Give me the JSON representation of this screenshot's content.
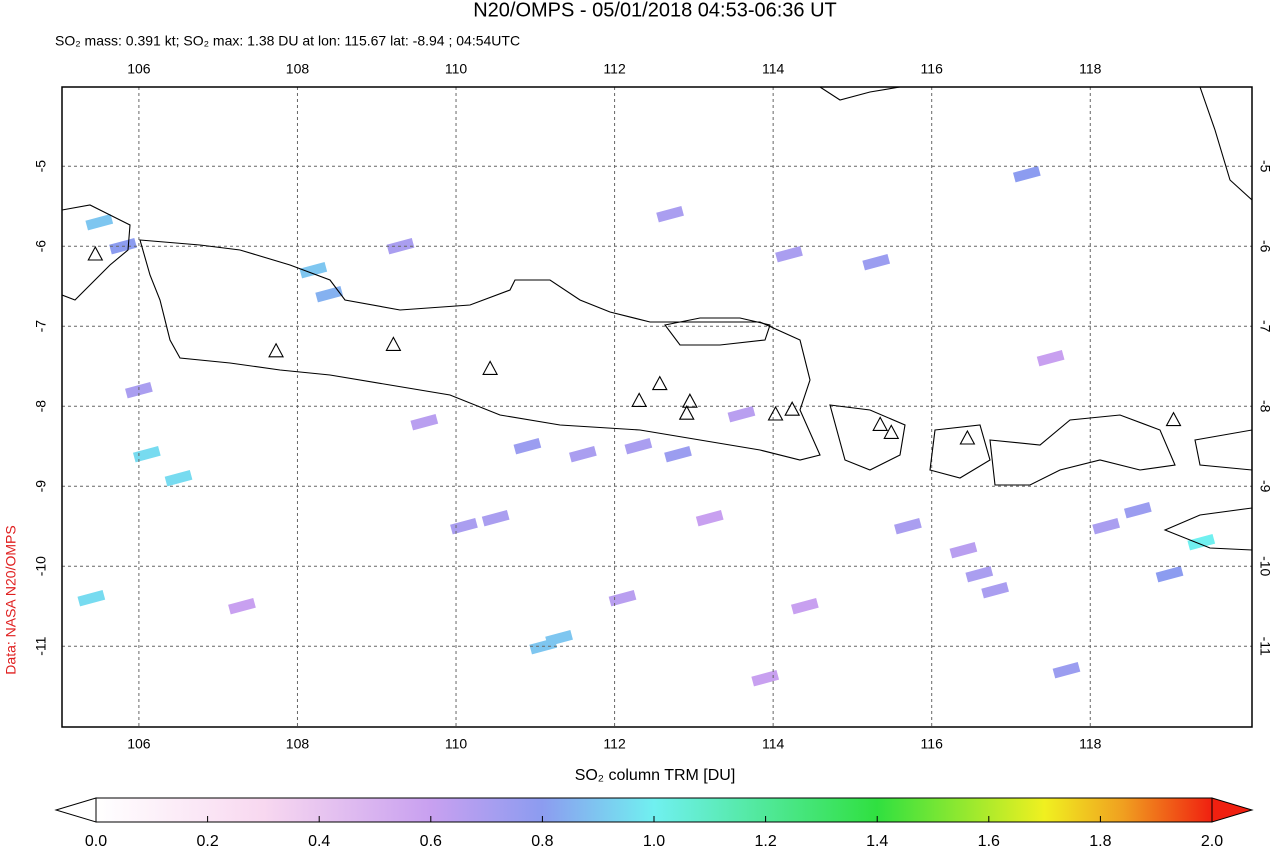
{
  "chart_data": {
    "type": "map",
    "title": "N20/OMPS - 05/01/2018 04:53-06:36 UT",
    "subtitle": "SO₂ mass: 0.391 kt; SO₂ max: 1.38 DU at lon: 115.67 lat: -8.94 ; 04:54UTC",
    "credit": "Data: NASA N20/OMPS",
    "colorbar_label": "SO₂ column TRM [DU]",
    "xlim": [
      105.03,
      120.04
    ],
    "ylim": [
      -12.01,
      -4.01
    ],
    "xticks": [
      106,
      108,
      110,
      112,
      114,
      116,
      118
    ],
    "yticks": [
      -5,
      -6,
      -7,
      -8,
      -9,
      -10,
      -11
    ],
    "clim": [
      0,
      2
    ],
    "cticks": [
      {
        "value": 0,
        "label": "0.0"
      },
      0.2,
      0.4,
      0.6,
      0.8,
      {
        "value": 1,
        "label": "1.0"
      },
      1.2,
      1.4,
      1.6,
      1.8,
      {
        "value": 2,
        "label": "2.0"
      }
    ],
    "grid": true,
    "volcanoes": {
      "lon": [
        105.45,
        107.73,
        109.21,
        110.43,
        112.31,
        112.57,
        112.95,
        112.91,
        114.03,
        114.24,
        115.35,
        115.49,
        116.45,
        119.05
      ],
      "lat": [
        -6.11,
        -7.32,
        -7.24,
        -7.54,
        -7.94,
        -7.73,
        -7.95,
        -8.1,
        -8.11,
        -8.05,
        -8.24,
        -8.34,
        -8.41,
        -8.18
      ]
    },
    "cells": {
      "lon": [
        105.5,
        105.8,
        106.1,
        106.5,
        107.3,
        108.2,
        108.4,
        109.3,
        109.6,
        110.1,
        110.9,
        111.3,
        111.6,
        112.1,
        112.3,
        112.8,
        113.2,
        113.6,
        114.2,
        114.4,
        115.3,
        115.7,
        116.4,
        116.6,
        117.2,
        117.5,
        118.2,
        118.6,
        119.4,
        106.0,
        105.4,
        110.5,
        111.1,
        113.9,
        117.7,
        119.0,
        116.8,
        112.7
      ],
      "lat": [
        -5.7,
        -6.0,
        -8.6,
        -8.9,
        -10.5,
        -6.3,
        -6.6,
        -6.0,
        -8.2,
        -9.5,
        -8.5,
        -10.9,
        -8.6,
        -10.4,
        -8.5,
        -8.6,
        -9.4,
        -8.1,
        -6.1,
        -10.5,
        -6.2,
        -9.5,
        -9.8,
        -10.1,
        -5.1,
        -7.4,
        -9.5,
        -9.3,
        -9.7,
        -7.8,
        -10.4,
        -9.4,
        -11.0,
        -11.4,
        -11.3,
        -10.1,
        -10.3,
        -5.6
      ],
      "values": [
        0.9,
        0.8,
        0.95,
        0.95,
        0.6,
        0.9,
        0.85,
        0.7,
        0.65,
        0.7,
        0.75,
        0.9,
        0.7,
        0.65,
        0.7,
        0.75,
        0.6,
        0.65,
        0.7,
        0.6,
        0.75,
        0.7,
        0.65,
        0.7,
        0.8,
        0.6,
        0.7,
        0.75,
        1.0,
        0.7,
        0.95,
        0.7,
        0.9,
        0.6,
        0.75,
        0.8,
        0.7,
        0.7
      ]
    }
  }
}
